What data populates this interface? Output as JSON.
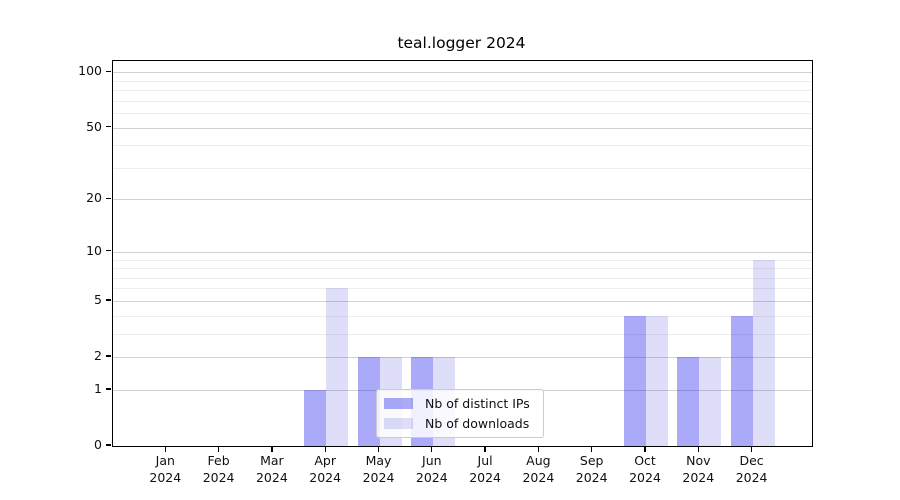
{
  "figure_title": "teal.logger 2024",
  "chart_data": {
    "type": "bar",
    "title": "teal.logger 2024",
    "categories": [
      "Jan",
      "Feb",
      "Mar",
      "Apr",
      "May",
      "Jun",
      "Jul",
      "Aug",
      "Sep",
      "Oct",
      "Nov",
      "Dec"
    ],
    "x_tick_year": "2024",
    "series": [
      {
        "name": "Nb of distinct IPs",
        "color": "rgba(20,20,235,0.36)",
        "values": [
          0,
          0,
          0,
          1,
          2,
          2,
          0,
          0,
          0,
          4,
          2,
          4
        ]
      },
      {
        "name": "Nb of downloads",
        "color": "rgba(20,20,215,0.14)",
        "values": [
          0,
          0,
          0,
          6,
          2,
          2,
          0,
          0,
          0,
          4,
          2,
          9
        ]
      }
    ],
    "xlabel": "",
    "ylabel": "",
    "yscale": "log1p",
    "ylim": [
      0,
      115
    ],
    "y_major_ticks": [
      0,
      1,
      2,
      5,
      10,
      20,
      50,
      100
    ],
    "y_minor_gridlines": [
      3,
      4,
      6,
      7,
      8,
      9,
      30,
      40,
      60,
      70,
      80,
      90
    ],
    "grid": true,
    "legend_position": "lower center inside"
  },
  "style": {
    "bar_color_distinct_ips": "rgba(20,20,235,0.36)",
    "bar_color_downloads": "rgba(20,20,215,0.14)",
    "major_grid_color": "#d2d2d2",
    "minor_grid_color": "#ededed",
    "spine_color": "#000000",
    "background": "#ffffff"
  }
}
